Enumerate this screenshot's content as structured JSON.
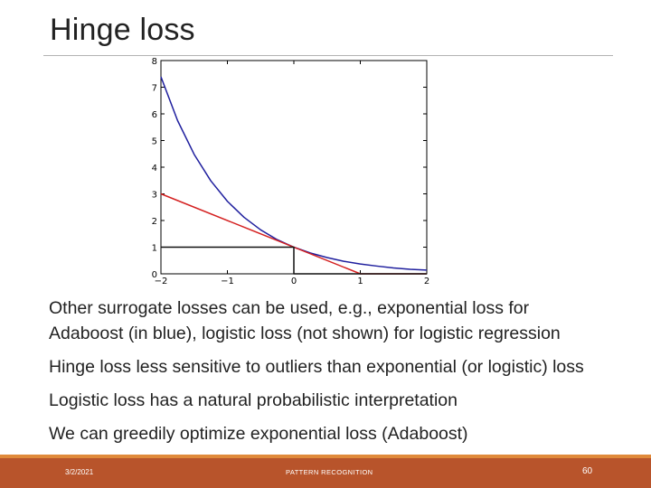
{
  "slide": {
    "title": "Hinge loss",
    "bullets": [
      "Other surrogate losses can be used, e.g., exponential loss for",
      "Adaboost (in blue), logistic loss (not shown) for logistic regression",
      "Hinge loss less sensitive to outliers than exponential (or logistic) loss",
      "Logistic loss has a natural probabilistic interpretation",
      "We can greedily optimize exponential loss (Adaboost)"
    ],
    "footer": {
      "date": "3/2/2021",
      "center": "PATTERN RECOGNITION",
      "page": "60"
    }
  },
  "chart_data": {
    "type": "line",
    "xlim": [
      -2,
      2
    ],
    "ylim": [
      0,
      8
    ],
    "x_ticks": [
      "-2",
      "-1",
      "0",
      "1",
      "2"
    ],
    "y_ticks": [
      "0",
      "1",
      "2",
      "3",
      "4",
      "5",
      "6",
      "7",
      "8"
    ],
    "grid": false,
    "series": [
      {
        "color": "#1f1f9e",
        "x": [
          -2,
          -1.75,
          -1.5,
          -1.25,
          -1,
          -0.75,
          -0.5,
          -0.25,
          0,
          0.25,
          0.5,
          0.75,
          1,
          1.25,
          1.5,
          1.75,
          2
        ],
        "y": [
          7.39,
          5.75,
          4.48,
          3.49,
          2.72,
          2.12,
          1.65,
          1.28,
          1.0,
          0.78,
          0.61,
          0.47,
          0.37,
          0.29,
          0.22,
          0.17,
          0.14
        ]
      },
      {
        "color": "#d42020",
        "x": [
          -2,
          1,
          2
        ],
        "y": [
          3,
          0,
          0
        ]
      },
      {
        "color": "#111111",
        "x": [
          -2,
          0,
          0,
          2
        ],
        "y": [
          1,
          1,
          0,
          0
        ]
      }
    ]
  }
}
